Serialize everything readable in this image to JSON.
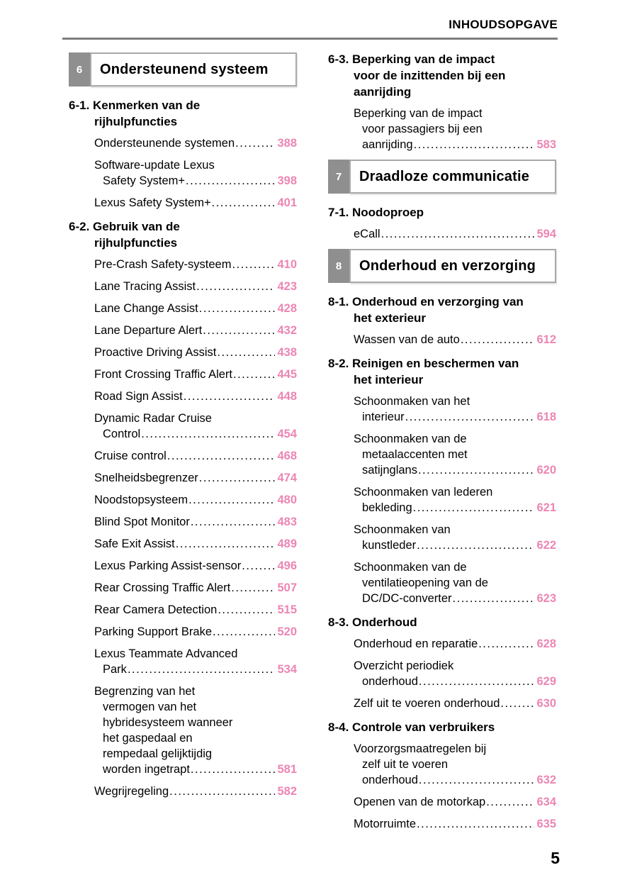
{
  "page": {
    "header": "INHOUDSOPGAVE",
    "page_number": "5",
    "accent_pink": "#ec86b4",
    "badge_gray": "#8f8f8f"
  },
  "columns": [
    {
      "blocks": [
        {
          "type": "chapter",
          "number": "6",
          "title": "Ondersteunend systeem"
        },
        {
          "type": "section",
          "number": "6-1.",
          "lines": [
            "Kenmerken van de",
            "rijhulpfuncties"
          ]
        },
        {
          "type": "entry",
          "lines": [
            "Ondersteunende systemen"
          ],
          "page": "388"
        },
        {
          "type": "entry",
          "lines": [
            "Software-update Lexus",
            "Safety System+"
          ],
          "page": "398"
        },
        {
          "type": "entry",
          "lines": [
            "Lexus Safety System+"
          ],
          "page": "401"
        },
        {
          "type": "section",
          "number": "6-2.",
          "lines": [
            "Gebruik van de",
            "rijhulpfuncties"
          ]
        },
        {
          "type": "entry",
          "lines": [
            "Pre-Crash Safety-systeem"
          ],
          "page": "410"
        },
        {
          "type": "entry",
          "lines": [
            "Lane Tracing Assist"
          ],
          "page": "423"
        },
        {
          "type": "entry",
          "lines": [
            "Lane Change Assist"
          ],
          "page": "428"
        },
        {
          "type": "entry",
          "lines": [
            "Lane Departure Alert"
          ],
          "page": "432"
        },
        {
          "type": "entry",
          "lines": [
            "Proactive Driving Assist"
          ],
          "page": "438"
        },
        {
          "type": "entry",
          "lines": [
            "Front Crossing Traffic Alert"
          ],
          "page": "445"
        },
        {
          "type": "entry",
          "lines": [
            "Road Sign Assist"
          ],
          "page": "448"
        },
        {
          "type": "entry",
          "lines": [
            "Dynamic Radar Cruise",
            "Control"
          ],
          "page": "454"
        },
        {
          "type": "entry",
          "lines": [
            "Cruise control"
          ],
          "page": "468"
        },
        {
          "type": "entry",
          "lines": [
            "Snelheidsbegrenzer"
          ],
          "page": "474"
        },
        {
          "type": "entry",
          "lines": [
            "Noodstopsysteem"
          ],
          "page": "480"
        },
        {
          "type": "entry",
          "lines": [
            "Blind Spot Monitor"
          ],
          "page": "483"
        },
        {
          "type": "entry",
          "lines": [
            "Safe Exit Assist"
          ],
          "page": "489"
        },
        {
          "type": "entry",
          "lines": [
            "Lexus Parking Assist-sensor"
          ],
          "page": "496"
        },
        {
          "type": "entry",
          "lines": [
            "Rear Crossing Traffic Alert"
          ],
          "page": "507"
        },
        {
          "type": "entry",
          "lines": [
            "Rear Camera Detection"
          ],
          "page": "515"
        },
        {
          "type": "entry",
          "lines": [
            "Parking Support Brake"
          ],
          "page": "520"
        },
        {
          "type": "entry",
          "lines": [
            "Lexus Teammate Advanced",
            "Park"
          ],
          "page": "534"
        },
        {
          "type": "entry",
          "lines": [
            "Begrenzing van het",
            "vermogen van het",
            "hybridesysteem wanneer",
            "het gaspedaal en",
            "rempedaal gelijktijdig",
            "worden ingetrapt"
          ],
          "page": "581"
        },
        {
          "type": "entry",
          "lines": [
            "Wegrijregeling"
          ],
          "page": "582"
        }
      ]
    },
    {
      "blocks": [
        {
          "type": "section",
          "number": "6-3.",
          "lines": [
            "Beperking van de impact",
            "voor de inzittenden bij een",
            "aanrijding"
          ]
        },
        {
          "type": "entry",
          "lines": [
            "Beperking van de impact",
            "voor passagiers bij een",
            "aanrijding"
          ],
          "page": "583"
        },
        {
          "type": "chapter",
          "number": "7",
          "title": "Draadloze communicatie"
        },
        {
          "type": "section",
          "number": "7-1.",
          "lines": [
            "Noodoproep"
          ]
        },
        {
          "type": "entry",
          "lines": [
            "eCall"
          ],
          "page": "594"
        },
        {
          "type": "chapter",
          "number": "8",
          "title": "Onderhoud en verzorging"
        },
        {
          "type": "section",
          "number": "8-1.",
          "lines": [
            "Onderhoud en verzorging van",
            "het exterieur"
          ]
        },
        {
          "type": "entry",
          "lines": [
            "Wassen van de auto"
          ],
          "page": "612"
        },
        {
          "type": "section",
          "number": "8-2.",
          "lines": [
            "Reinigen en beschermen van",
            "het interieur"
          ]
        },
        {
          "type": "entry",
          "lines": [
            "Schoonmaken van het",
            "interieur"
          ],
          "page": "618"
        },
        {
          "type": "entry",
          "lines": [
            "Schoonmaken van de",
            "metaalaccenten met",
            "satijnglans"
          ],
          "page": "620"
        },
        {
          "type": "entry",
          "lines": [
            "Schoonmaken van lederen",
            "bekleding"
          ],
          "page": "621"
        },
        {
          "type": "entry",
          "lines": [
            "Schoonmaken van",
            "kunstleder"
          ],
          "page": "622"
        },
        {
          "type": "entry",
          "lines": [
            "Schoonmaken van de",
            "ventilatieopening van de",
            "DC/DC-converter"
          ],
          "page": "623"
        },
        {
          "type": "section",
          "number": "8-3.",
          "lines": [
            "Onderhoud"
          ]
        },
        {
          "type": "entry",
          "lines": [
            "Onderhoud en reparatie"
          ],
          "page": "628"
        },
        {
          "type": "entry",
          "lines": [
            "Overzicht periodiek",
            "onderhoud"
          ],
          "page": "629"
        },
        {
          "type": "entry",
          "lines": [
            "Zelf uit te voeren onderhoud"
          ],
          "page": "630"
        },
        {
          "type": "section",
          "number": "8-4.",
          "lines": [
            "Controle van verbruikers"
          ]
        },
        {
          "type": "entry",
          "lines": [
            "Voorzorgsmaatregelen bij",
            "zelf uit te voeren",
            "onderhoud"
          ],
          "page": "632"
        },
        {
          "type": "entry",
          "lines": [
            "Openen van de motorkap"
          ],
          "page": "634"
        },
        {
          "type": "entry",
          "lines": [
            "Motorruimte"
          ],
          "page": "635"
        }
      ]
    }
  ]
}
